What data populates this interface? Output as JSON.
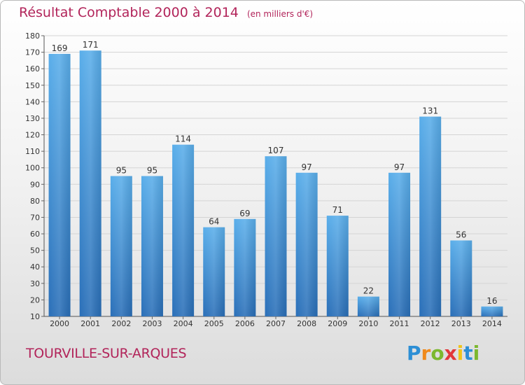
{
  "chart_data": {
    "type": "bar",
    "title": "Résultat Comptable 2000 à 2014",
    "subtitle": "(en milliers d'€)",
    "categories": [
      "2000",
      "2001",
      "2002",
      "2003",
      "2004",
      "2005",
      "2006",
      "2007",
      "2008",
      "2009",
      "2010",
      "2011",
      "2012",
      "2013",
      "2014"
    ],
    "values": [
      169,
      171,
      95,
      95,
      114,
      64,
      69,
      107,
      97,
      71,
      22,
      97,
      131,
      56,
      16
    ],
    "ylim": [
      10,
      180
    ],
    "yticks": [
      10,
      20,
      30,
      40,
      50,
      60,
      70,
      80,
      90,
      100,
      110,
      120,
      130,
      140,
      150,
      160,
      170,
      180
    ],
    "xlabel": "",
    "ylabel": "",
    "grid": true,
    "bar_color": "#4f9fe0",
    "bar_color_dark": "#2a6fb8"
  },
  "footer": {
    "commune": "TOURVILLE-SUR-ARQUES",
    "logo_letters": [
      "P",
      "r",
      "o",
      "x",
      "i",
      "t",
      "i"
    ],
    "logo_colors": [
      "#2d8fd5",
      "#f08a1c",
      "#7cb82f",
      "#e2373a",
      "#f0c419",
      "#2d8fd5",
      "#7cb82f"
    ]
  },
  "colors": {
    "title": "#b2245a"
  }
}
